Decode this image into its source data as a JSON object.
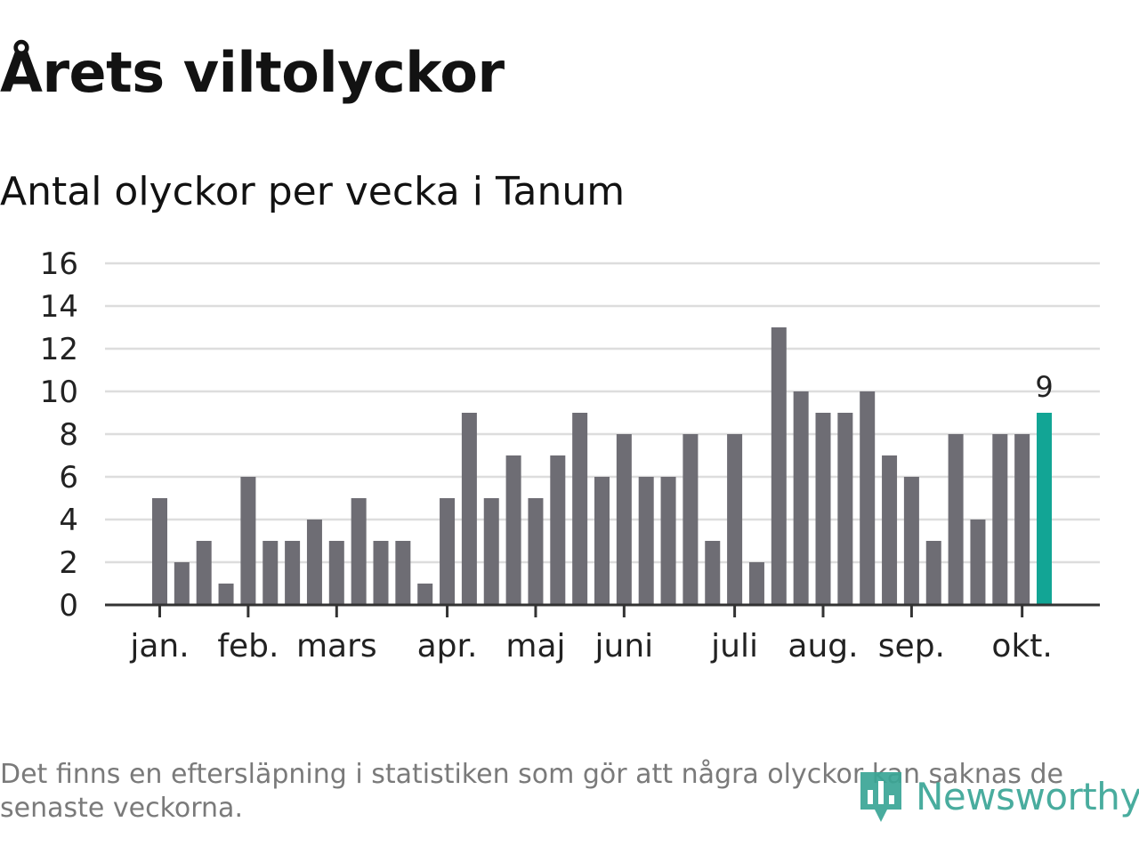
{
  "header": {
    "title": "Årets viltolyckor",
    "subtitle": "Antal olyckor per vecka i Tanum"
  },
  "footer": {
    "note": "Det finns en eftersläpning i statistiken som gör att några olyckor kan saknas de senaste veckorna.",
    "brand": "Newsworthy"
  },
  "colors": {
    "bar": "#6e6d74",
    "highlight": "#12a595",
    "grid": "#dddddd",
    "axis": "#333333",
    "brand": "#3aa696"
  },
  "icons": {
    "brand_logo": "newsworthy-logo-icon"
  },
  "chart_data": {
    "type": "bar",
    "title": "Årets viltolyckor",
    "subtitle": "Antal olyckor per vecka i Tanum",
    "xlabel": "",
    "ylabel": "",
    "ylim": [
      0,
      16
    ],
    "yticks": [
      0,
      2,
      4,
      6,
      8,
      10,
      12,
      14,
      16
    ],
    "grid": true,
    "values": [
      5,
      2,
      3,
      1,
      6,
      3,
      3,
      4,
      3,
      5,
      3,
      3,
      1,
      5,
      9,
      5,
      7,
      5,
      7,
      9,
      6,
      8,
      6,
      6,
      8,
      3,
      8,
      2,
      13,
      10,
      9,
      9,
      10,
      7,
      6,
      3,
      8,
      4,
      8,
      8,
      9
    ],
    "month_ticks": [
      {
        "label": "jan.",
        "bar": 0
      },
      {
        "label": "feb.",
        "bar": 4
      },
      {
        "label": "mars",
        "bar": 8
      },
      {
        "label": "apr.",
        "bar": 13
      },
      {
        "label": "maj",
        "bar": 17
      },
      {
        "label": "juni",
        "bar": 21
      },
      {
        "label": "juli",
        "bar": 26
      },
      {
        "label": "aug.",
        "bar": 30
      },
      {
        "label": "sep.",
        "bar": 34
      },
      {
        "label": "okt.",
        "bar": 39
      }
    ],
    "highlight_index": 40,
    "data_labels": [
      {
        "index": 40,
        "text": "9"
      }
    ]
  }
}
